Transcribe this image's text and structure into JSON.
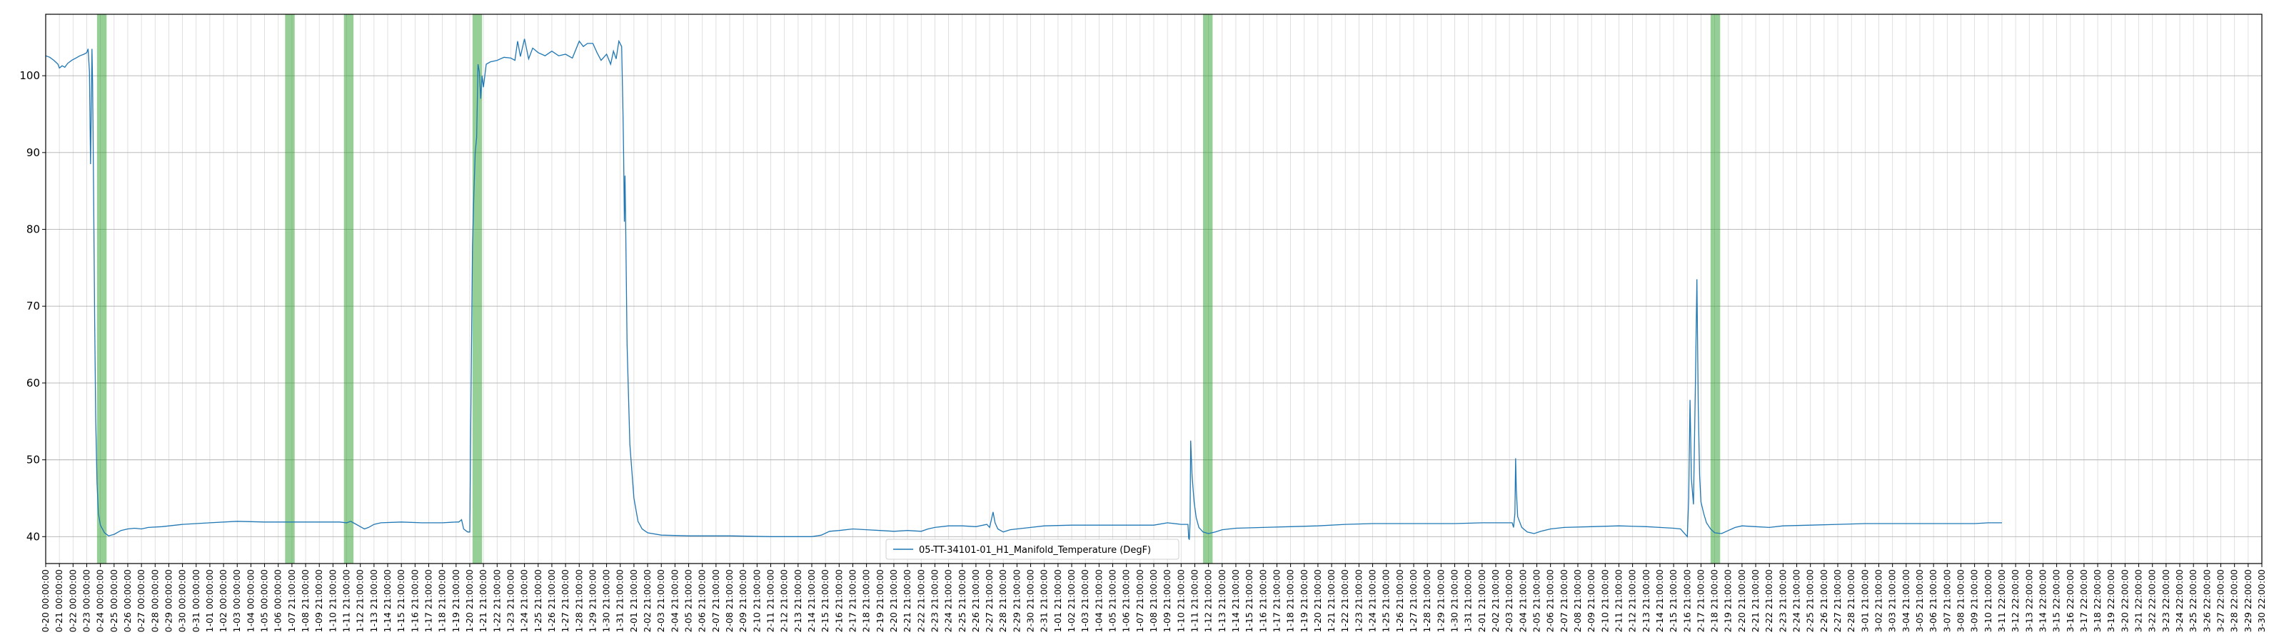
{
  "chart_data": {
    "type": "line",
    "title": "",
    "xlabel": "",
    "ylabel": "",
    "x_start": "0-20 00:00:00",
    "x_end": "3-30 22:00:00",
    "ylim": [
      36.5,
      108.0
    ],
    "yticks": [
      40,
      50,
      60,
      70,
      80,
      90,
      100
    ],
    "grid": "major and minor",
    "legend": {
      "position": "bottom-center",
      "entries": [
        "05-TT-34101-01_H1_Manifold_Temperature (DegF)"
      ]
    },
    "colors": {
      "line": "#1f77b4",
      "shade": "#2ca02c",
      "grid_major": "#b0b0b0",
      "grid_minor": "#d9d9d9"
    },
    "x_tick_labels": [
      "0-20 00:00:00",
      "0-21 00:00:00",
      "0-22 00:00:00",
      "0-23 00:00:00",
      "0-24 00:00:00",
      "0-25 00:00:00",
      "0-26 00:00:00",
      "0-27 00:00:00",
      "0-28 00:00:00",
      "0-29 00:00:00",
      "0-30 00:00:00",
      "0-31 00:00:00",
      "1-01 00:00:00",
      "1-02 00:00:00",
      "1-03 00:00:00",
      "1-04 00:00:00",
      "1-05 00:00:00",
      "1-06 00:00:00",
      "1-07 21:00:00",
      "1-08 21:00:00",
      "1-09 21:00:00",
      "1-10 21:00:00",
      "1-11 21:00:00",
      "1-12 21:00:00",
      "1-13 21:00:00",
      "1-14 21:00:00",
      "1-15 21:00:00",
      "1-16 21:00:00",
      "1-17 21:00:00",
      "1-18 21:00:00",
      "1-19 21:00:00",
      "1-20 21:00:00",
      "1-21 21:00:00",
      "1-22 21:00:00",
      "1-23 21:00:00",
      "1-24 21:00:00",
      "1-25 21:00:00",
      "1-26 21:00:00",
      "1-27 21:00:00",
      "1-28 21:00:00",
      "1-29 21:00:00",
      "1-30 21:00:00",
      "1-31 21:00:00",
      "2-01 21:00:00",
      "2-02 21:00:00",
      "2-03 21:00:00",
      "2-04 21:00:00",
      "2-05 21:00:00",
      "2-06 21:00:00",
      "2-07 21:00:00",
      "2-08 21:00:00",
      "2-09 21:00:00",
      "2-10 21:00:00",
      "2-11 21:00:00",
      "2-12 21:00:00",
      "2-13 21:00:00",
      "2-14 21:00:00",
      "2-15 21:00:00",
      "2-16 21:00:00",
      "2-17 21:00:00",
      "2-18 21:00:00",
      "2-19 21:00:00",
      "2-20 21:00:00",
      "2-21 21:00:00",
      "2-22 21:00:00",
      "2-23 21:00:00",
      "2-24 21:00:00",
      "2-25 21:00:00",
      "2-26 21:00:00",
      "2-27 21:00:00",
      "2-28 21:00:00",
      "2-29 21:00:00",
      "2-30 21:00:00",
      "2-31 21:00:00",
      "1-01 21:00:00",
      "1-02 21:00:00",
      "1-03 21:00:00",
      "1-04 21:00:00",
      "1-05 21:00:00",
      "1-06 21:00:00",
      "1-07 21:00:00",
      "1-08 21:00:00",
      "1-09 21:00:00",
      "1-10 21:00:00",
      "1-11 21:00:00",
      "1-12 21:00:00",
      "1-13 21:00:00",
      "1-14 21:00:00",
      "1-15 21:00:00",
      "1-16 21:00:00",
      "1-17 21:00:00",
      "1-18 21:00:00",
      "1-19 21:00:00",
      "1-20 21:00:00",
      "1-21 21:00:00",
      "1-22 21:00:00",
      "1-23 21:00:00",
      "1-24 21:00:00",
      "1-25 21:00:00",
      "1-26 21:00:00",
      "1-27 21:00:00",
      "1-28 21:00:00",
      "1-29 21:00:00",
      "1-30 21:00:00",
      "1-31 21:00:00",
      "2-01 21:00:00",
      "2-02 21:00:00",
      "2-03 21:00:00",
      "2-04 21:00:00",
      "2-05 21:00:00",
      "2-06 21:00:00",
      "2-07 21:00:00",
      "2-08 21:00:00",
      "2-09 21:00:00",
      "2-10 21:00:00",
      "2-11 21:00:00",
      "2-12 21:00:00",
      "2-13 21:00:00",
      "2-14 21:00:00",
      "2-15 21:00:00",
      "2-16 21:00:00",
      "2-17 21:00:00",
      "2-18 21:00:00",
      "2-19 21:00:00",
      "2-20 21:00:00",
      "2-21 21:00:00",
      "2-22 21:00:00",
      "2-23 21:00:00",
      "2-24 21:00:00",
      "2-25 21:00:00",
      "2-26 21:00:00",
      "2-27 21:00:00",
      "2-28 21:00:00",
      "3-01 21:00:00",
      "3-02 21:00:00",
      "3-03 21:00:00",
      "3-04 21:00:00",
      "3-05 21:00:00",
      "3-06 21:00:00",
      "3-07 21:00:00",
      "3-08 21:00:00",
      "3-09 21:00:00",
      "3-10 21:00:00",
      "3-11 22:00:00",
      "3-12 22:00:00",
      "3-13 22:00:00",
      "3-14 22:00:00",
      "3-15 22:00:00",
      "3-16 22:00:00",
      "3-17 22:00:00",
      "3-18 22:00:00",
      "3-19 22:00:00",
      "3-20 22:00:00",
      "3-21 22:00:00",
      "3-22 22:00:00",
      "3-23 22:00:00",
      "3-24 22:00:00",
      "3-25 22:00:00",
      "3-26 22:00:00",
      "3-27 22:00:00",
      "3-28 22:00:00",
      "3-29 22:00:00",
      "3-30 22:00:00"
    ],
    "shaded_ranges": [
      {
        "from": 3.75,
        "to": 4.45
      },
      {
        "from": 17.5,
        "to": 18.2
      },
      {
        "from": 21.8,
        "to": 22.5
      },
      {
        "from": 31.2,
        "to": 31.9
      },
      {
        "from": 84.6,
        "to": 85.3
      },
      {
        "from": 121.7,
        "to": 122.4
      }
    ],
    "series": [
      {
        "name": "05-TT-34101-01_H1_Manifold_Temperature (DegF)",
        "points": [
          [
            0.0,
            102.6
          ],
          [
            0.3,
            102.4
          ],
          [
            0.6,
            102.0
          ],
          [
            0.9,
            101.5
          ],
          [
            1.0,
            101.0
          ],
          [
            1.2,
            101.3
          ],
          [
            1.4,
            101.1
          ],
          [
            1.6,
            101.6
          ],
          [
            1.9,
            102.0
          ],
          [
            2.2,
            102.3
          ],
          [
            2.5,
            102.6
          ],
          [
            2.8,
            102.8
          ],
          [
            3.0,
            103.0
          ],
          [
            3.1,
            103.5
          ],
          [
            3.2,
            100.5
          ],
          [
            3.28,
            88.5
          ],
          [
            3.32,
            94.0
          ],
          [
            3.38,
            103.5
          ],
          [
            3.43,
            99.0
          ],
          [
            3.5,
            85.0
          ],
          [
            3.58,
            68.0
          ],
          [
            3.66,
            55.0
          ],
          [
            3.75,
            47.0
          ],
          [
            3.85,
            43.0
          ],
          [
            4.0,
            41.5
          ],
          [
            4.3,
            40.5
          ],
          [
            4.6,
            40.1
          ],
          [
            5.0,
            40.3
          ],
          [
            5.5,
            40.8
          ],
          [
            6.0,
            41.0
          ],
          [
            6.5,
            41.1
          ],
          [
            7.0,
            41.0
          ],
          [
            7.5,
            41.2
          ],
          [
            8.5,
            41.3
          ],
          [
            10.0,
            41.6
          ],
          [
            12.0,
            41.8
          ],
          [
            14.0,
            42.0
          ],
          [
            16.0,
            41.9
          ],
          [
            18.0,
            41.9
          ],
          [
            20.0,
            41.9
          ],
          [
            21.5,
            41.9
          ],
          [
            22.0,
            41.8
          ],
          [
            22.3,
            42.0
          ],
          [
            22.6,
            41.7
          ],
          [
            23.0,
            41.3
          ],
          [
            23.3,
            41.0
          ],
          [
            23.6,
            41.2
          ],
          [
            24.0,
            41.6
          ],
          [
            24.5,
            41.8
          ],
          [
            26.0,
            41.9
          ],
          [
            27.5,
            41.8
          ],
          [
            29.0,
            41.8
          ],
          [
            30.0,
            41.9
          ],
          [
            30.2,
            41.9
          ],
          [
            30.4,
            42.2
          ],
          [
            30.55,
            41.0
          ],
          [
            30.7,
            40.8
          ],
          [
            30.85,
            40.6
          ],
          [
            31.0,
            40.6
          ],
          [
            31.1,
            60.0
          ],
          [
            31.2,
            78.0
          ],
          [
            31.3,
            84.5
          ],
          [
            31.4,
            90.0
          ],
          [
            31.5,
            92.0
          ],
          [
            31.6,
            101.5
          ],
          [
            31.7,
            100.5
          ],
          [
            31.8,
            97.0
          ],
          [
            31.9,
            100.0
          ],
          [
            32.0,
            98.5
          ],
          [
            32.2,
            101.5
          ],
          [
            32.5,
            101.8
          ],
          [
            33.0,
            102.0
          ],
          [
            33.5,
            102.4
          ],
          [
            34.0,
            102.3
          ],
          [
            34.3,
            102.0
          ],
          [
            34.5,
            104.5
          ],
          [
            34.7,
            102.5
          ],
          [
            35.0,
            104.8
          ],
          [
            35.3,
            102.2
          ],
          [
            35.6,
            103.6
          ],
          [
            36.0,
            103.0
          ],
          [
            36.5,
            102.6
          ],
          [
            37.0,
            103.2
          ],
          [
            37.5,
            102.6
          ],
          [
            38.0,
            102.8
          ],
          [
            38.5,
            102.3
          ],
          [
            39.0,
            104.5
          ],
          [
            39.3,
            103.8
          ],
          [
            39.6,
            104.2
          ],
          [
            40.0,
            104.2
          ],
          [
            40.3,
            103.0
          ],
          [
            40.6,
            102.0
          ],
          [
            41.0,
            102.8
          ],
          [
            41.3,
            101.5
          ],
          [
            41.5,
            103.2
          ],
          [
            41.7,
            102.2
          ],
          [
            41.9,
            104.5
          ],
          [
            42.1,
            103.8
          ],
          [
            42.2,
            95.0
          ],
          [
            42.25,
            89.5
          ],
          [
            42.3,
            81.0
          ],
          [
            42.35,
            87.0
          ],
          [
            42.4,
            80.0
          ],
          [
            42.5,
            65.0
          ],
          [
            42.7,
            52.0
          ],
          [
            43.0,
            45.0
          ],
          [
            43.3,
            42.0
          ],
          [
            43.6,
            41.0
          ],
          [
            44.0,
            40.5
          ],
          [
            45.0,
            40.2
          ],
          [
            47.0,
            40.1
          ],
          [
            50.0,
            40.1
          ],
          [
            53.0,
            40.0
          ],
          [
            56.0,
            40.0
          ],
          [
            56.7,
            40.2
          ],
          [
            57.3,
            40.7
          ],
          [
            58.0,
            40.8
          ],
          [
            59.0,
            41.0
          ],
          [
            60.0,
            40.9
          ],
          [
            61.0,
            40.8
          ],
          [
            62.0,
            40.7
          ],
          [
            63.0,
            40.8
          ],
          [
            64.0,
            40.7
          ],
          [
            64.5,
            41.0
          ],
          [
            65.0,
            41.2
          ],
          [
            66.0,
            41.4
          ],
          [
            67.0,
            41.4
          ],
          [
            68.0,
            41.3
          ],
          [
            68.8,
            41.6
          ],
          [
            69.0,
            41.2
          ],
          [
            69.25,
            43.2
          ],
          [
            69.4,
            41.8
          ],
          [
            69.6,
            41.0
          ],
          [
            70.0,
            40.6
          ],
          [
            70.5,
            40.9
          ],
          [
            71.0,
            41.0
          ],
          [
            72.0,
            41.2
          ],
          [
            73.0,
            41.4
          ],
          [
            75.0,
            41.5
          ],
          [
            77.0,
            41.5
          ],
          [
            79.0,
            41.5
          ],
          [
            81.0,
            41.5
          ],
          [
            82.0,
            41.8
          ],
          [
            83.0,
            41.6
          ],
          [
            83.5,
            41.6
          ],
          [
            83.55,
            39.8
          ],
          [
            83.6,
            39.6
          ],
          [
            83.65,
            41.8
          ],
          [
            83.7,
            52.5
          ],
          [
            83.8,
            48.0
          ],
          [
            83.95,
            44.5
          ],
          [
            84.1,
            42.5
          ],
          [
            84.3,
            41.2
          ],
          [
            84.6,
            40.6
          ],
          [
            85.0,
            40.4
          ],
          [
            85.5,
            40.6
          ],
          [
            86.0,
            40.9
          ],
          [
            87.0,
            41.1
          ],
          [
            89.0,
            41.2
          ],
          [
            91.0,
            41.3
          ],
          [
            93.0,
            41.4
          ],
          [
            95.0,
            41.6
          ],
          [
            97.0,
            41.7
          ],
          [
            99.0,
            41.7
          ],
          [
            101.0,
            41.7
          ],
          [
            103.0,
            41.7
          ],
          [
            105.0,
            41.8
          ],
          [
            106.5,
            41.8
          ],
          [
            107.2,
            41.8
          ],
          [
            107.3,
            41.2
          ],
          [
            107.4,
            43.0
          ],
          [
            107.45,
            50.2
          ],
          [
            107.5,
            46.0
          ],
          [
            107.6,
            42.6
          ],
          [
            107.9,
            41.2
          ],
          [
            108.3,
            40.6
          ],
          [
            108.8,
            40.4
          ],
          [
            109.3,
            40.7
          ],
          [
            110.0,
            41.0
          ],
          [
            111.0,
            41.2
          ],
          [
            113.0,
            41.3
          ],
          [
            115.0,
            41.4
          ],
          [
            117.0,
            41.3
          ],
          [
            118.0,
            41.2
          ],
          [
            119.0,
            41.1
          ],
          [
            119.5,
            41.0
          ],
          [
            120.0,
            40.0
          ],
          [
            120.1,
            45.0
          ],
          [
            120.2,
            57.8
          ],
          [
            120.3,
            47.5
          ],
          [
            120.45,
            44.2
          ],
          [
            120.6,
            61.0
          ],
          [
            120.7,
            73.5
          ],
          [
            120.8,
            57.0
          ],
          [
            120.9,
            48.0
          ],
          [
            121.0,
            44.5
          ],
          [
            121.2,
            43.0
          ],
          [
            121.4,
            41.8
          ],
          [
            121.7,
            41.0
          ],
          [
            122.0,
            40.5
          ],
          [
            122.5,
            40.4
          ],
          [
            123.0,
            40.8
          ],
          [
            123.5,
            41.2
          ],
          [
            124.0,
            41.4
          ],
          [
            125.0,
            41.3
          ],
          [
            126.0,
            41.2
          ],
          [
            127.0,
            41.4
          ],
          [
            129.0,
            41.5
          ],
          [
            131.0,
            41.6
          ],
          [
            133.0,
            41.7
          ],
          [
            135.0,
            41.7
          ],
          [
            137.0,
            41.7
          ],
          [
            139.0,
            41.7
          ],
          [
            141.0,
            41.7
          ],
          [
            142.0,
            41.8
          ],
          [
            143.0,
            41.8
          ]
        ]
      }
    ]
  }
}
